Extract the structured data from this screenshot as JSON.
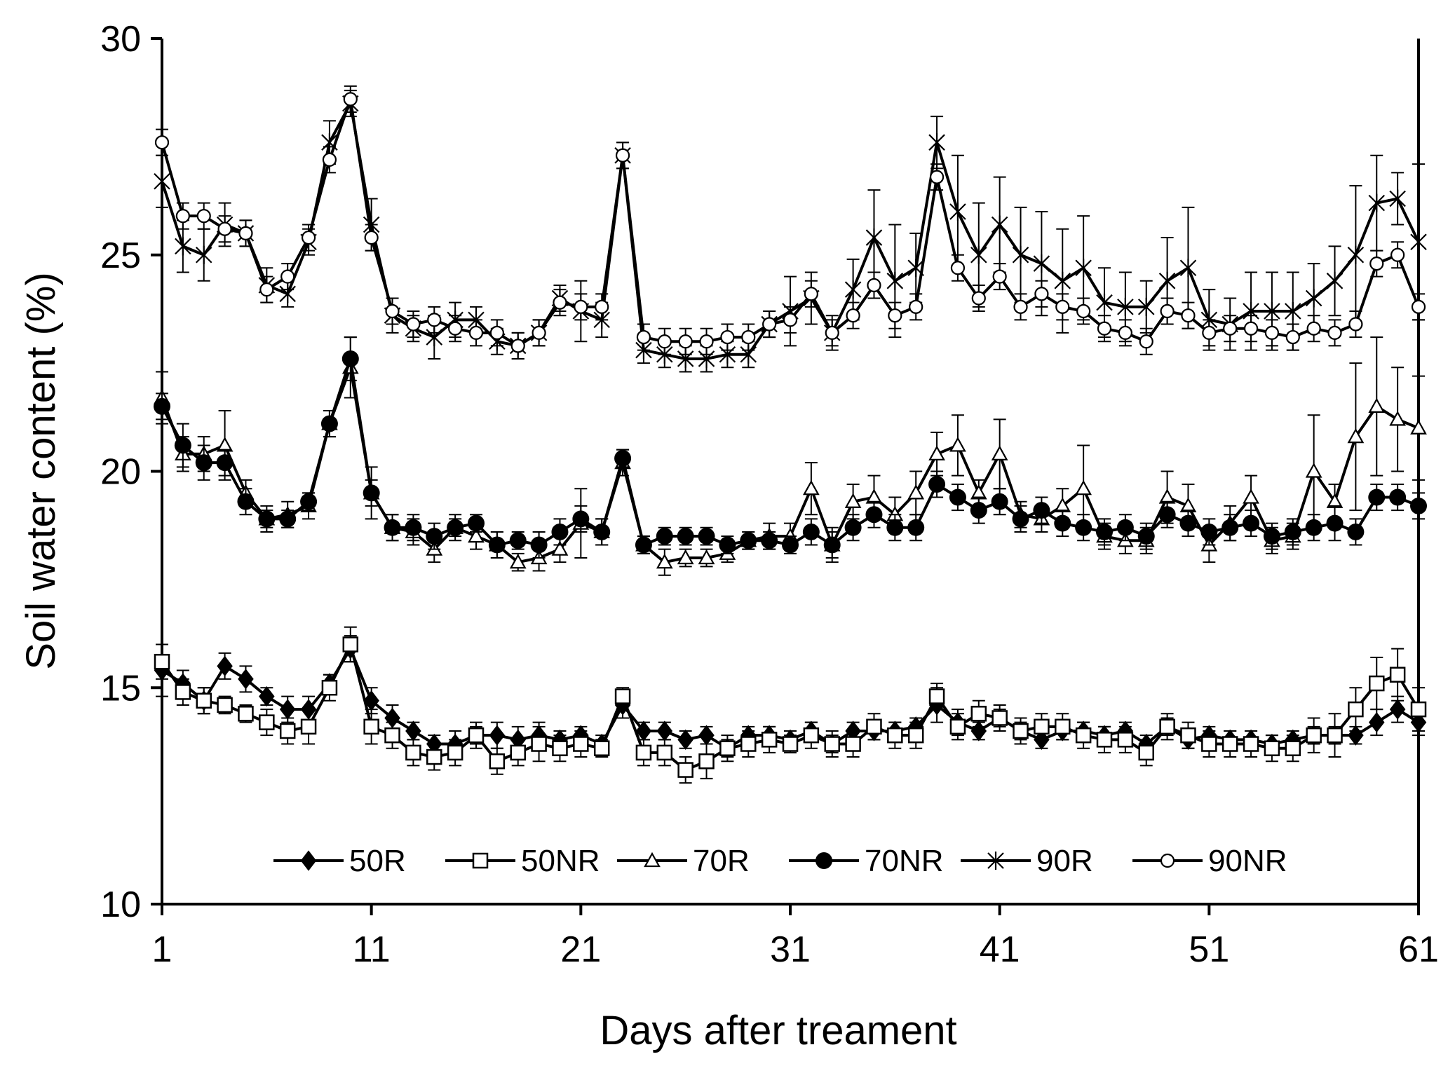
{
  "chart_data": {
    "type": "line",
    "title": "",
    "xlabel": "Days after treament",
    "ylabel": "Soil water content (%)",
    "xlim": [
      1,
      61
    ],
    "ylim": [
      10,
      30
    ],
    "xticks": [
      1,
      11,
      21,
      31,
      41,
      51,
      61
    ],
    "yticks": [
      10,
      15,
      20,
      25,
      30
    ],
    "grid": false,
    "legend_position": "bottom-center",
    "x": [
      1,
      2,
      3,
      4,
      5,
      6,
      7,
      8,
      9,
      10,
      11,
      12,
      13,
      14,
      15,
      16,
      17,
      18,
      19,
      20,
      21,
      22,
      23,
      24,
      25,
      26,
      27,
      28,
      29,
      30,
      31,
      32,
      33,
      34,
      35,
      36,
      37,
      38,
      39,
      40,
      41,
      42,
      43,
      44,
      45,
      46,
      47,
      48,
      49,
      50,
      51,
      52,
      53,
      54,
      55,
      56,
      57,
      58,
      59,
      60,
      61
    ],
    "series": [
      {
        "name": "50R",
        "marker": "diamond-filled",
        "values": [
          15.4,
          15.1,
          14.7,
          15.5,
          15.2,
          14.8,
          14.5,
          14.5,
          15.1,
          15.9,
          14.7,
          14.3,
          14.0,
          13.7,
          13.7,
          13.9,
          13.9,
          13.8,
          13.9,
          13.8,
          13.9,
          13.7,
          14.6,
          14.0,
          14.0,
          13.8,
          13.9,
          13.6,
          13.9,
          13.9,
          13.8,
          14.0,
          13.7,
          14.0,
          14.0,
          14.0,
          14.1,
          14.6,
          14.2,
          14.0,
          14.3,
          14.0,
          13.8,
          14.0,
          14.0,
          13.9,
          14.0,
          13.7,
          14.1,
          13.8,
          13.9,
          13.8,
          13.8,
          13.7,
          13.8,
          13.9,
          13.9,
          13.9,
          14.2,
          14.5,
          14.2
        ],
        "errors": [
          0.6,
          0.3,
          0.3,
          0.3,
          0.3,
          0.2,
          0.3,
          0.3,
          0.2,
          0.3,
          0.3,
          0.3,
          0.2,
          0.2,
          0.3,
          0.2,
          0.3,
          0.3,
          0.3,
          0.2,
          0.2,
          0.2,
          0.3,
          0.2,
          0.2,
          0.2,
          0.2,
          0.2,
          0.2,
          0.2,
          0.2,
          0.2,
          0.2,
          0.2,
          0.2,
          0.2,
          0.2,
          0.4,
          0.3,
          0.2,
          0.2,
          0.2,
          0.2,
          0.2,
          0.2,
          0.2,
          0.2,
          0.2,
          0.2,
          0.2,
          0.2,
          0.2,
          0.2,
          0.2,
          0.2,
          0.2,
          0.2,
          0.2,
          0.3,
          0.3,
          0.3
        ]
      },
      {
        "name": "50NR",
        "marker": "square-open",
        "values": [
          15.6,
          14.9,
          14.7,
          14.6,
          14.4,
          14.2,
          14.0,
          14.1,
          15.0,
          16.0,
          14.1,
          13.9,
          13.5,
          13.4,
          13.5,
          13.9,
          13.3,
          13.5,
          13.7,
          13.6,
          13.7,
          13.6,
          14.8,
          13.5,
          13.5,
          13.1,
          13.3,
          13.6,
          13.7,
          13.8,
          13.7,
          13.9,
          13.7,
          13.7,
          14.1,
          13.9,
          13.9,
          14.8,
          14.1,
          14.4,
          14.3,
          14.0,
          14.1,
          14.1,
          13.9,
          13.8,
          13.8,
          13.5,
          14.1,
          13.9,
          13.7,
          13.7,
          13.7,
          13.6,
          13.6,
          13.9,
          13.9,
          14.5,
          15.1,
          15.3,
          14.5
        ],
        "errors": [
          0.4,
          0.3,
          0.3,
          0.2,
          0.2,
          0.3,
          0.3,
          0.4,
          0.3,
          0.4,
          0.4,
          0.3,
          0.3,
          0.3,
          0.3,
          0.3,
          0.3,
          0.3,
          0.4,
          0.3,
          0.3,
          0.2,
          0.2,
          0.3,
          0.3,
          0.3,
          0.4,
          0.3,
          0.3,
          0.3,
          0.2,
          0.3,
          0.3,
          0.3,
          0.3,
          0.3,
          0.3,
          0.3,
          0.3,
          0.3,
          0.3,
          0.3,
          0.3,
          0.3,
          0.3,
          0.3,
          0.3,
          0.3,
          0.3,
          0.3,
          0.3,
          0.3,
          0.3,
          0.3,
          0.3,
          0.4,
          0.5,
          0.5,
          0.6,
          0.6,
          0.5
        ]
      },
      {
        "name": "70R",
        "marker": "triangle-open",
        "values": [
          21.7,
          20.4,
          20.4,
          20.6,
          19.5,
          18.9,
          19.0,
          19.2,
          21.1,
          22.4,
          19.5,
          18.7,
          18.6,
          18.2,
          18.7,
          18.5,
          18.3,
          17.9,
          18.0,
          18.2,
          18.8,
          18.6,
          20.2,
          18.3,
          17.9,
          18.0,
          18.0,
          18.1,
          18.4,
          18.5,
          18.5,
          19.6,
          18.3,
          19.3,
          19.4,
          19.0,
          19.5,
          20.4,
          20.6,
          19.5,
          20.4,
          19.0,
          18.9,
          19.2,
          19.6,
          18.5,
          18.4,
          18.4,
          19.4,
          19.2,
          18.3,
          18.8,
          19.4,
          18.4,
          18.5,
          20.0,
          19.3,
          20.8,
          21.5,
          21.2,
          21.0
        ],
        "errors": [
          0.6,
          0.4,
          0.4,
          0.8,
          0.3,
          0.3,
          0.3,
          0.3,
          0.3,
          0.7,
          0.6,
          0.3,
          0.3,
          0.3,
          0.3,
          0.3,
          0.3,
          0.2,
          0.3,
          0.3,
          0.8,
          0.3,
          0.3,
          0.2,
          0.3,
          0.2,
          0.2,
          0.2,
          0.2,
          0.3,
          0.3,
          0.6,
          0.3,
          0.4,
          0.5,
          0.4,
          0.5,
          0.5,
          0.7,
          0.3,
          0.8,
          0.3,
          0.3,
          0.4,
          1.0,
          0.3,
          0.3,
          0.3,
          0.6,
          0.5,
          0.4,
          0.4,
          0.5,
          0.3,
          0.3,
          1.3,
          0.4,
          1.7,
          1.6,
          1.2,
          1.2
        ]
      },
      {
        "name": "70NR",
        "marker": "circle-filled",
        "values": [
          21.5,
          20.6,
          20.2,
          20.2,
          19.3,
          18.9,
          18.9,
          19.3,
          21.1,
          22.6,
          19.5,
          18.7,
          18.7,
          18.5,
          18.7,
          18.8,
          18.3,
          18.4,
          18.3,
          18.6,
          18.9,
          18.6,
          20.3,
          18.3,
          18.5,
          18.5,
          18.5,
          18.3,
          18.4,
          18.4,
          18.3,
          18.6,
          18.3,
          18.7,
          19.0,
          18.7,
          18.7,
          19.7,
          19.4,
          19.1,
          19.3,
          18.9,
          19.1,
          18.8,
          18.7,
          18.6,
          18.7,
          18.5,
          19.0,
          18.8,
          18.6,
          18.7,
          18.8,
          18.5,
          18.6,
          18.7,
          18.8,
          18.6,
          19.4,
          19.4,
          19.2
        ],
        "errors": [
          0.3,
          0.5,
          0.4,
          0.3,
          0.3,
          0.2,
          0.2,
          0.2,
          0.3,
          0.5,
          0.3,
          0.3,
          0.3,
          0.3,
          0.2,
          0.2,
          0.3,
          0.2,
          0.3,
          0.3,
          0.3,
          0.3,
          0.2,
          0.2,
          0.2,
          0.2,
          0.2,
          0.2,
          0.2,
          0.2,
          0.2,
          0.3,
          0.4,
          0.3,
          0.3,
          0.3,
          0.3,
          0.3,
          0.3,
          0.3,
          0.3,
          0.3,
          0.3,
          0.3,
          0.3,
          0.3,
          0.3,
          0.3,
          0.3,
          0.3,
          0.3,
          0.3,
          0.3,
          0.3,
          0.3,
          0.3,
          0.4,
          0.3,
          0.3,
          0.3,
          0.3
        ]
      },
      {
        "name": "90R",
        "marker": "asterisk",
        "values": [
          26.7,
          25.2,
          25.0,
          25.7,
          25.5,
          24.3,
          24.1,
          25.3,
          27.6,
          28.5,
          25.7,
          23.6,
          23.3,
          23.1,
          23.5,
          23.5,
          23.0,
          22.9,
          23.2,
          24.0,
          23.7,
          23.5,
          27.3,
          22.8,
          22.7,
          22.6,
          22.6,
          22.7,
          22.7,
          23.4,
          23.7,
          24.0,
          23.2,
          24.2,
          25.4,
          24.4,
          24.7,
          27.6,
          26.0,
          25.0,
          25.7,
          25.0,
          24.8,
          24.4,
          24.7,
          23.9,
          23.8,
          23.8,
          24.4,
          24.7,
          23.5,
          23.4,
          23.7,
          23.7,
          23.7,
          24.0,
          24.4,
          25.0,
          26.2,
          26.3,
          25.3
        ],
        "errors": [
          0.6,
          0.6,
          0.6,
          0.5,
          0.3,
          0.4,
          0.3,
          0.3,
          0.5,
          0.3,
          0.6,
          0.4,
          0.3,
          0.5,
          0.4,
          0.3,
          0.3,
          0.3,
          0.3,
          0.3,
          0.7,
          0.4,
          0.3,
          0.3,
          0.3,
          0.3,
          0.3,
          0.3,
          0.3,
          0.3,
          0.8,
          0.6,
          0.4,
          0.7,
          1.1,
          1.3,
          0.8,
          0.6,
          1.3,
          1.2,
          1.1,
          1.1,
          1.2,
          1.2,
          1.2,
          0.8,
          0.8,
          0.6,
          1.0,
          1.4,
          0.7,
          0.6,
          0.9,
          0.9,
          0.9,
          0.8,
          0.8,
          1.6,
          1.1,
          0.6,
          1.8
        ]
      },
      {
        "name": "90NR",
        "marker": "circle-open",
        "values": [
          27.6,
          25.9,
          25.9,
          25.6,
          25.5,
          24.2,
          24.5,
          25.4,
          27.2,
          28.6,
          25.4,
          23.7,
          23.4,
          23.5,
          23.3,
          23.2,
          23.2,
          22.9,
          23.2,
          23.9,
          23.8,
          23.8,
          27.3,
          23.1,
          23.0,
          23.0,
          23.0,
          23.1,
          23.1,
          23.4,
          23.5,
          24.1,
          23.2,
          23.6,
          24.3,
          23.6,
          23.8,
          26.8,
          24.7,
          24.0,
          24.5,
          23.8,
          24.1,
          23.8,
          23.7,
          23.3,
          23.2,
          23.0,
          23.7,
          23.6,
          23.2,
          23.3,
          23.3,
          23.2,
          23.1,
          23.3,
          23.2,
          23.4,
          24.8,
          25.0,
          23.8
        ],
        "errors": [
          0.3,
          0.3,
          0.3,
          0.3,
          0.3,
          0.3,
          0.3,
          0.3,
          0.3,
          0.3,
          0.3,
          0.3,
          0.3,
          0.3,
          0.3,
          0.3,
          0.3,
          0.3,
          0.3,
          0.3,
          0.3,
          0.3,
          0.3,
          0.3,
          0.3,
          0.3,
          0.3,
          0.3,
          0.3,
          0.3,
          0.3,
          0.3,
          0.3,
          0.3,
          0.3,
          0.3,
          0.3,
          0.3,
          0.3,
          0.3,
          0.3,
          0.3,
          0.3,
          0.3,
          0.3,
          0.3,
          0.3,
          0.3,
          0.3,
          0.3,
          0.3,
          0.3,
          0.3,
          0.3,
          0.3,
          0.3,
          0.3,
          0.3,
          0.3,
          0.3,
          0.3
        ]
      }
    ]
  }
}
